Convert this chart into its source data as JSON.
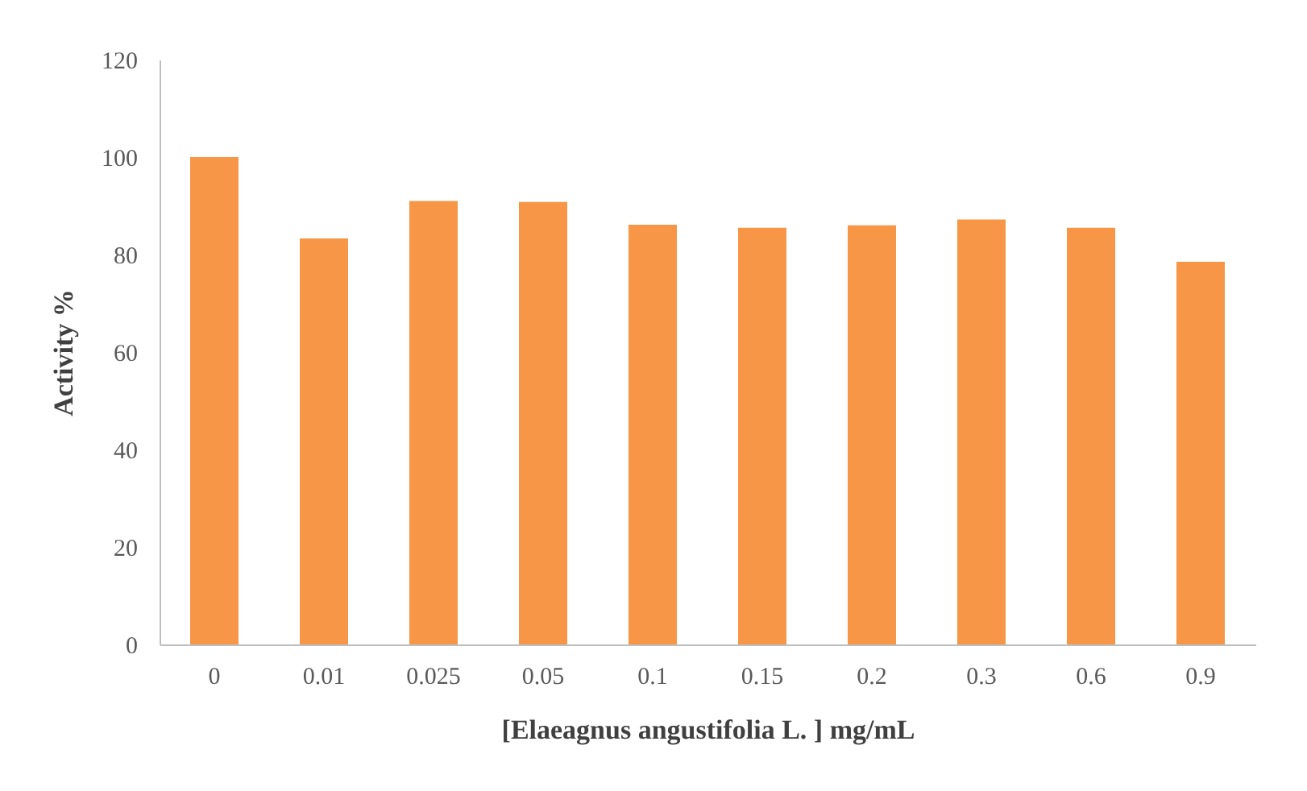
{
  "chart_data": {
    "type": "bar",
    "xlabel": "[Elaeagnus angustifolia L. ] mg/mL",
    "ylabel": "Activity %",
    "categories": [
      "0",
      "0.01",
      "0.025",
      "0.05",
      "0.1",
      "0.15",
      "0.2",
      "0.3",
      "0.6",
      "0.9"
    ],
    "values": [
      100,
      83.3,
      91,
      90.8,
      86.1,
      85.5,
      86,
      87.2,
      85.5,
      78.5
    ],
    "color": "#f79646",
    "ylim": [
      0,
      120
    ],
    "yticks": [
      0,
      20,
      40,
      60,
      80,
      100,
      120
    ],
    "grid": false
  }
}
